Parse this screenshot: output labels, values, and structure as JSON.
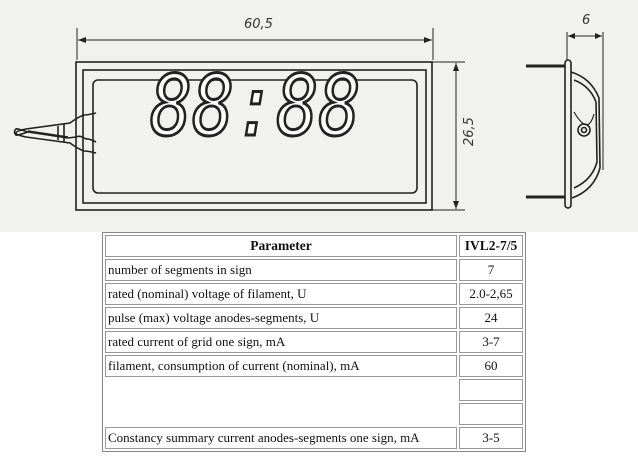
{
  "drawing": {
    "width_dimension": "60,5",
    "height_dimension": "26,5",
    "depth_dimension": "6",
    "display_digits": "88:88"
  },
  "table": {
    "headers": [
      "Parameter",
      "IVL2-7/5"
    ],
    "rows": [
      {
        "parameter": "number of segments in sign",
        "value": "7"
      },
      {
        "parameter": "rated (nominal) voltage of filament, U",
        "value": "2.0-2,65"
      },
      {
        "parameter": "pulse (max) voltage anodes-segments, U",
        "value": "24"
      },
      {
        "parameter": "rated current of grid one sign, mA",
        "value": "3-7"
      },
      {
        "parameter": "filament, consumption of current (nominal), mA",
        "value": "60"
      },
      {
        "parameter": "",
        "value": ""
      },
      {
        "parameter": "",
        "value": ""
      },
      {
        "parameter": "Constancy summary current anodes-segments one sign, mA",
        "value": "3-5"
      }
    ]
  }
}
